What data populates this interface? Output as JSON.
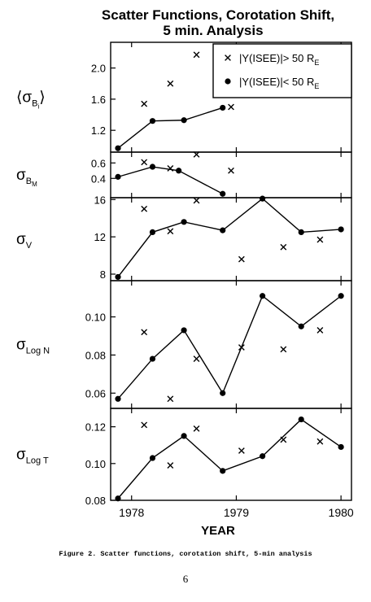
{
  "title_lines": [
    "Scatter Functions, Corotation Shift,",
    "5 min. Analysis"
  ],
  "xlabel": "YEAR",
  "caption": "Figure 2.  Scatter functions, corotation shift, 5-min analysis",
  "page_number": "6",
  "legend": [
    {
      "marker": "cross",
      "label": "|Y(ISEE)|> 50 R",
      "sub": "E"
    },
    {
      "marker": "dot",
      "label": "|Y(ISEE)|< 50 R",
      "sub": "E"
    }
  ],
  "chart_data": {
    "type": "scatter",
    "xlim": [
      1977.8,
      1980.1
    ],
    "xticks": [
      1978,
      1979,
      1980
    ],
    "xtick_labels": [
      "1978",
      "1979",
      "1980"
    ],
    "panels": [
      {
        "ylabel": "σ",
        "ylabel_sub": "B",
        "ylabel_subsub": "i",
        "ylabel_angle": true,
        "ylim": [
          0.92,
          2.33
        ],
        "yticks": [
          1.2,
          1.6,
          2.0
        ],
        "ytick_labels": [
          "1.2",
          "1.6",
          "2.0"
        ],
        "series": [
          {
            "name": "|Y(ISEE)|> 50 R_E",
            "marker": "cross",
            "line": false,
            "x": [
              1978.12,
              1978.37,
              1978.62,
              1978.95
            ],
            "y": [
              1.54,
              1.8,
              2.17,
              1.5
            ]
          },
          {
            "name": "|Y(ISEE)|< 50 R_E",
            "marker": "dot",
            "line": true,
            "x": [
              1977.87,
              1978.2,
              1978.5,
              1978.87
            ],
            "y": [
              0.97,
              1.32,
              1.33,
              1.49
            ]
          }
        ]
      },
      {
        "ylabel": "σ",
        "ylabel_sub": "B",
        "ylabel_subsub": "M",
        "ylim": [
          0.15,
          0.74
        ],
        "yticks": [
          0.4,
          0.6
        ],
        "ytick_labels": [
          "0.4",
          "0.6"
        ],
        "series": [
          {
            "name": "|Y(ISEE)|> 50 R_E",
            "marker": "cross",
            "line": false,
            "x": [
              1978.12,
              1978.37,
              1978.62,
              1978.95
            ],
            "y": [
              0.61,
              0.53,
              0.71,
              0.5
            ]
          },
          {
            "name": "|Y(ISEE)|< 50 R_E",
            "marker": "dot",
            "line": true,
            "x": [
              1977.87,
              1978.2,
              1978.45,
              1978.87
            ],
            "y": [
              0.42,
              0.55,
              0.5,
              0.2
            ]
          }
        ]
      },
      {
        "ylabel": "σ",
        "ylabel_sub": "V",
        "ylim": [
          7.3,
          16.2
        ],
        "yticks": [
          8,
          12,
          16
        ],
        "ytick_labels": [
          "8",
          "12",
          "16"
        ],
        "series": [
          {
            "name": "|Y(ISEE)|> 50 R_E",
            "marker": "cross",
            "line": false,
            "x": [
              1978.12,
              1978.37,
              1978.62,
              1979.05,
              1979.45,
              1979.8
            ],
            "y": [
              15.0,
              12.6,
              15.9,
              9.6,
              10.9,
              11.7
            ]
          },
          {
            "name": "|Y(ISEE)|< 50 R_E",
            "marker": "dot",
            "line": true,
            "x": [
              1977.87,
              1978.2,
              1978.5,
              1978.87,
              1979.25,
              1979.62,
              1980.0
            ],
            "y": [
              7.7,
              12.5,
              13.6,
              12.7,
              16.1,
              12.5,
              12.8
            ]
          }
        ]
      },
      {
        "ylabel": "σ",
        "ylabel_sub": "Log N",
        "ylim": [
          0.052,
          0.119
        ],
        "yticks": [
          0.06,
          0.08,
          0.1
        ],
        "ytick_labels": [
          "0.06",
          "0.08",
          "0.10"
        ],
        "series": [
          {
            "name": "|Y(ISEE)|> 50 R_E",
            "marker": "cross",
            "line": false,
            "x": [
              1978.12,
              1978.37,
              1978.62,
              1979.05,
              1979.45,
              1979.8
            ],
            "y": [
              0.092,
              0.057,
              0.078,
              0.084,
              0.083,
              0.093
            ]
          },
          {
            "name": "|Y(ISEE)|< 50 R_E",
            "marker": "dot",
            "line": true,
            "x": [
              1977.87,
              1978.2,
              1978.5,
              1978.87,
              1979.25,
              1979.62,
              1980.0
            ],
            "y": [
              0.057,
              0.078,
              0.093,
              0.06,
              0.111,
              0.095,
              0.111
            ]
          }
        ]
      },
      {
        "ylabel": "σ",
        "ylabel_sub": "Log T",
        "ylim": [
          0.08,
          0.13
        ],
        "yticks": [
          0.08,
          0.1,
          0.12
        ],
        "ytick_labels": [
          "0.08",
          "0.10",
          "0.12"
        ],
        "series": [
          {
            "name": "|Y(ISEE)|> 50 R_E",
            "marker": "cross",
            "line": false,
            "x": [
              1978.12,
              1978.37,
              1978.62,
              1979.05,
              1979.45,
              1979.8
            ],
            "y": [
              0.121,
              0.099,
              0.119,
              0.107,
              0.113,
              0.112
            ]
          },
          {
            "name": "|Y(ISEE)|< 50 R_E",
            "marker": "dot",
            "line": true,
            "x": [
              1977.87,
              1978.2,
              1978.5,
              1978.87,
              1979.25,
              1979.62,
              1980.0
            ],
            "y": [
              0.081,
              0.103,
              0.115,
              0.096,
              0.104,
              0.124,
              0.109
            ]
          }
        ]
      }
    ]
  }
}
